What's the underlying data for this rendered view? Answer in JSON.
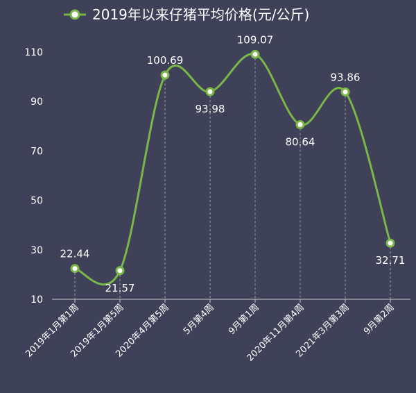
{
  "chart_data": {
    "type": "line",
    "title": "",
    "xlabel": "",
    "ylabel": "",
    "ylim": [
      10,
      110
    ],
    "yticks": [
      10,
      30,
      50,
      70,
      90,
      110
    ],
    "categories": [
      "2019年1月第1周",
      "2019年1月第5周",
      "2020年4月第5周",
      "5月第4周",
      "9月第1周",
      "2020年11月第4周",
      "2021年3月第3周",
      "9月第2周"
    ],
    "series": [
      {
        "name": "2019年以来仔猪平均价格(元/公斤)",
        "values": [
          22.44,
          21.57,
          100.69,
          93.98,
          109.07,
          80.64,
          93.86,
          32.71
        ],
        "value_labels": [
          "22.44",
          "21.57",
          "100.69",
          "93.98",
          "109.07",
          "80.64",
          "93.86",
          "32.71"
        ],
        "label_position": [
          "above",
          "below",
          "above",
          "below",
          "above",
          "below",
          "above",
          "below"
        ]
      }
    ],
    "line_color": "#7ab648",
    "background": "#3e4158",
    "grid": false,
    "drop_lines": true,
    "legend_position": "top-center"
  }
}
